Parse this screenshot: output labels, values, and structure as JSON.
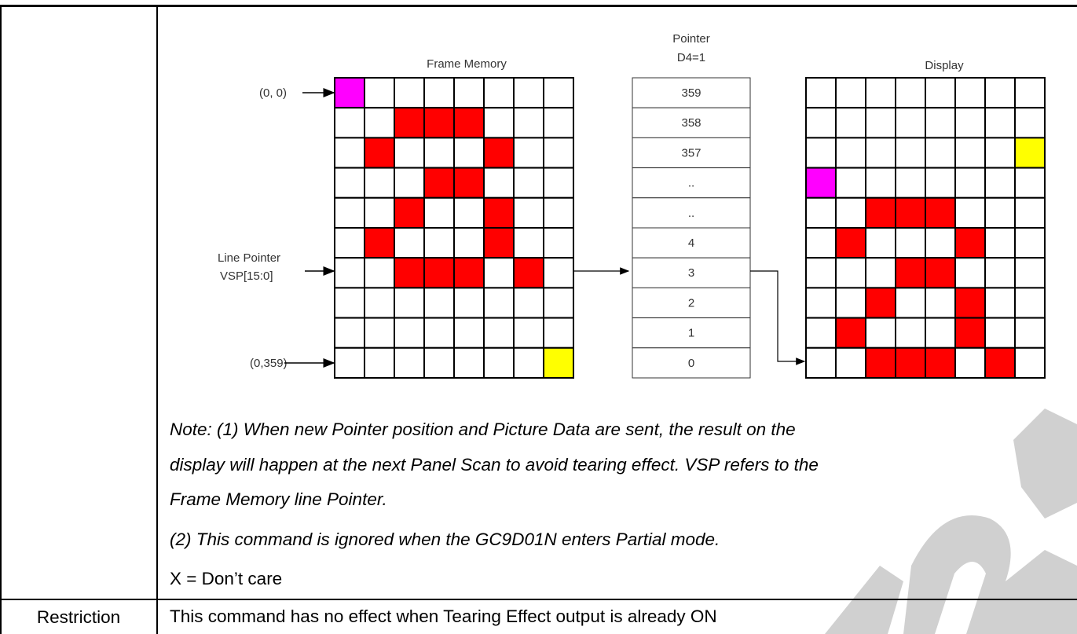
{
  "diagram": {
    "frame_memory_title": "Frame Memory",
    "pointer_title_line1": "Pointer",
    "pointer_title_line2": "D4=1",
    "display_title": "Display",
    "origin_label": "(0, 0)",
    "end_label": "(0,359)",
    "line_pointer_line1": "Line Pointer",
    "line_pointer_line2": "VSP[15:0]",
    "pointer_values": [
      "359",
      "358",
      "357",
      "..",
      "..",
      "4",
      "3",
      "2",
      "1",
      "0"
    ],
    "colors": {
      "red": "#ff0000",
      "magenta": "#ff00ff",
      "yellow": "#ffff00",
      "grid": "#000000"
    },
    "frame_memory_grid": [
      "M.......",
      "..RRR...",
      ".R...R..",
      "...RR...",
      "..R..R..",
      ".R...R..",
      "..RRR.R.",
      "........",
      "........",
      ".......Y"
    ],
    "display_grid": [
      "........",
      "........",
      ".......Y",
      "M.......",
      "..RRR...",
      ".R...R..",
      "...RR...",
      "..R..R..",
      ".R...R..",
      "..RRR.R."
    ]
  },
  "notes": [
    "Note: (1) When new Pointer position and Picture Data are sent, the result on the",
    "display will happen at the next Panel Scan to avoid tearing effect. VSP refers to the",
    "Frame Memory line Pointer.",
    "(2) This command is ignored when the GC9D01N enters Partial mode."
  ],
  "dont_care": "X = Don’t care",
  "restriction": {
    "label": "Restriction",
    "text": "This command has no effect when Tearing Effect output is already ON"
  },
  "watermark_color": "#d0d0d0"
}
